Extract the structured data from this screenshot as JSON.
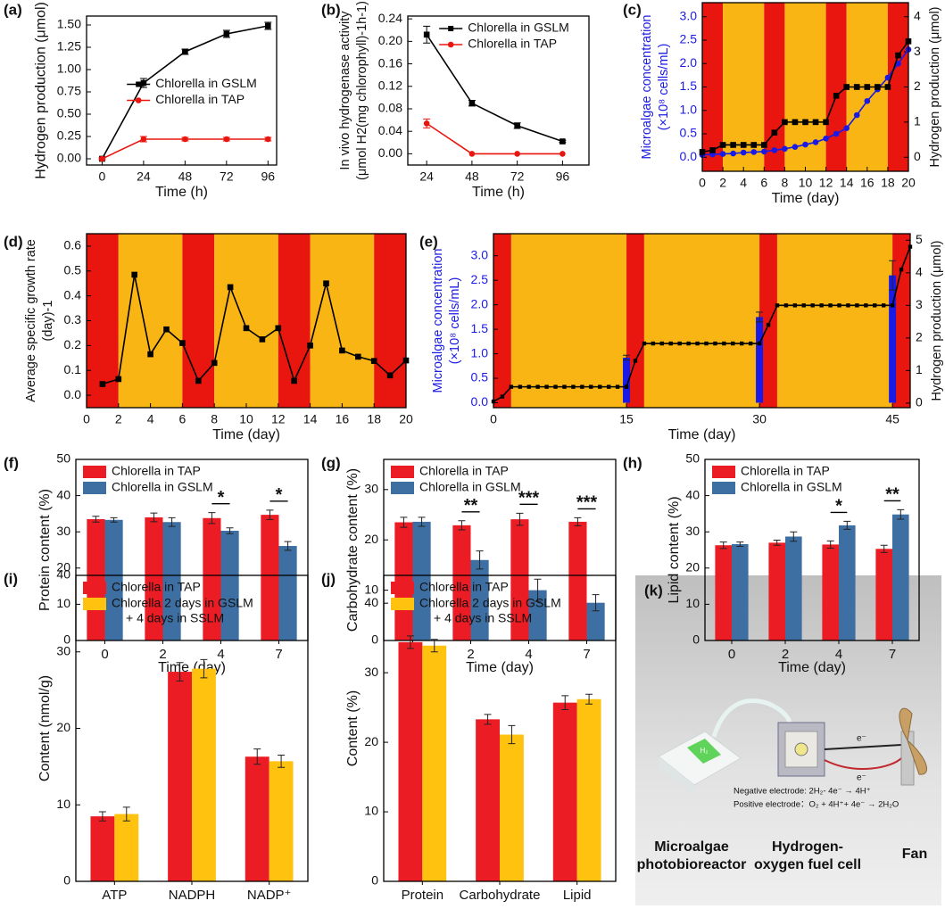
{
  "chart_data": [
    {
      "type": "line",
      "panel": "(a)",
      "xlabel": "Time (h)",
      "ylabel": "Hydrogen production (μmol)",
      "x": [
        0,
        24,
        48,
        72,
        96
      ],
      "xlim": [
        -9,
        101
      ],
      "xticks": [
        0,
        24,
        48,
        72,
        96
      ],
      "ylim": [
        -0.07,
        1.6
      ],
      "yticks": [
        {
          "value": 0,
          "label": "0.00"
        },
        {
          "value": 0.25,
          "label": "0.25"
        },
        {
          "value": 0.5,
          "label": "0.50"
        },
        {
          "value": 0.75,
          "label": "0.75"
        },
        {
          "value": 1,
          "label": "1.00"
        },
        {
          "value": 1.25,
          "label": "1.25"
        },
        {
          "value": 1.5,
          "label": "1.50"
        }
      ],
      "legend": "center right",
      "series": [
        {
          "name": "Chlorella in GSLM",
          "color": "#000000",
          "marker": "square",
          "values": [
            0,
            0.85,
            1.2,
            1.4,
            1.49
          ],
          "errors": [
            0.01,
            0.05,
            0.03,
            0.04,
            0.04
          ]
        },
        {
          "name": "Chlorella in TAP",
          "color": "#e8160f",
          "marker": "circle",
          "values": [
            0,
            0.22,
            0.22,
            0.22,
            0.22
          ],
          "errors": [
            0.01,
            0.03,
            0.02,
            0.02,
            0.02
          ]
        }
      ]
    },
    {
      "type": "line",
      "panel": "(b)",
      "xlabel": "Time (h)",
      "ylabel": [
        "In vivo hydrogenase activity",
        "(μmol H2(mg chlorophyll)-1h-1)"
      ],
      "x": [
        24,
        48,
        72,
        96
      ],
      "xlim": [
        14,
        110
      ],
      "xticks": [
        24,
        48,
        72,
        96
      ],
      "ylim": [
        -0.02,
        0.245
      ],
      "yticks": [
        {
          "value": 0,
          "label": "0.00"
        },
        {
          "value": 0.04,
          "label": "0.04"
        },
        {
          "value": 0.08,
          "label": "0.08"
        },
        {
          "value": 0.12,
          "label": "0.12"
        },
        {
          "value": 0.16,
          "label": "0.16"
        },
        {
          "value": 0.2,
          "label": "0.20"
        },
        {
          "value": 0.24,
          "label": "0.24"
        }
      ],
      "legend": "upper right",
      "series": [
        {
          "name": "Chlorella in GSLM",
          "color": "#000000",
          "marker": "square",
          "values": [
            0.212,
            0.09,
            0.05,
            0.022
          ],
          "errors": [
            0.015,
            0.005,
            0.005,
            0.002
          ]
        },
        {
          "name": "Chlorella in TAP",
          "color": "#e8160f",
          "marker": "circle",
          "values": [
            0.054,
            0,
            0,
            0
          ],
          "errors": [
            0.008,
            0,
            0,
            0
          ]
        }
      ]
    },
    {
      "type": "line",
      "panel": "(c)",
      "xlabel": "Time (day)",
      "ylabel": [
        "Microalgae concentration",
        "(×10⁸ cells/mL)"
      ],
      "ylabel_color": "#1a1ae6",
      "y2label": "Hydrogen production (μmol)",
      "x": [
        0,
        1,
        2,
        3,
        4,
        5,
        6,
        7,
        8,
        9,
        10,
        11,
        12,
        13,
        14,
        15,
        16,
        17,
        18,
        19,
        20
      ],
      "xlim": [
        0,
        20
      ],
      "xticks": [
        0,
        2,
        4,
        6,
        8,
        10,
        12,
        14,
        16,
        18,
        20
      ],
      "ylim": [
        -0.3,
        3.3
      ],
      "yticks": [
        {
          "value": 0,
          "label": "0.0"
        },
        {
          "value": 0.5,
          "label": "0.5"
        },
        {
          "value": 1,
          "label": "1.0"
        },
        {
          "value": 1.5,
          "label": "1.5"
        },
        {
          "value": 2,
          "label": "2.0"
        },
        {
          "value": 2.5,
          "label": "2.5"
        },
        {
          "value": 3,
          "label": "3.0"
        }
      ],
      "y2lim": [
        -0.4,
        4.4
      ],
      "y2ticks": [
        0,
        1,
        2,
        3,
        4
      ],
      "bands": [
        {
          "from": 0,
          "to": 2,
          "color": "#e8160f"
        },
        {
          "from": 2,
          "to": 6,
          "color": "#f8b514"
        },
        {
          "from": 6,
          "to": 8,
          "color": "#e8160f"
        },
        {
          "from": 8,
          "to": 12,
          "color": "#f8b514"
        },
        {
          "from": 12,
          "to": 14,
          "color": "#e8160f"
        },
        {
          "from": 14,
          "to": 18,
          "color": "#f8b514"
        },
        {
          "from": 18,
          "to": 20,
          "color": "#e8160f"
        }
      ],
      "series": [
        {
          "color": "#1a1ae6",
          "marker": "circle",
          "values": [
            0.05,
            0.06,
            0.07,
            0.08,
            0.1,
            0.11,
            0.12,
            0.15,
            0.18,
            0.22,
            0.27,
            0.32,
            0.4,
            0.5,
            0.62,
            0.9,
            1.2,
            1.45,
            1.7,
            2.0,
            2.3
          ]
        },
        {
          "color": "#000000",
          "marker": "square",
          "axis": "y2",
          "values": [
            0.15,
            0.2,
            0.35,
            0.35,
            0.35,
            0.35,
            0.35,
            0.7,
            1.0,
            1.0,
            1.0,
            1.0,
            1.0,
            1.75,
            2.0,
            2.0,
            2.0,
            2.0,
            2.0,
            2.9,
            3.3
          ]
        }
      ]
    },
    {
      "type": "line",
      "panel": "(d)",
      "xlabel": "Time (day)",
      "ylabel": [
        "Average specific growth rate",
        "(day)-1"
      ],
      "x": [
        1,
        2,
        3,
        4,
        5,
        6,
        7,
        8,
        9,
        10,
        11,
        12,
        13,
        14,
        15,
        16,
        17,
        18,
        19,
        20
      ],
      "xlim": [
        0,
        20
      ],
      "xticks": [
        0,
        2,
        4,
        6,
        8,
        10,
        12,
        14,
        16,
        18,
        20
      ],
      "ylim": [
        -0.05,
        0.65
      ],
      "yticks": [
        {
          "value": 0,
          "label": "0.0"
        },
        {
          "value": 0.1,
          "label": "0.1"
        },
        {
          "value": 0.2,
          "label": "0.2"
        },
        {
          "value": 0.3,
          "label": "0.3"
        },
        {
          "value": 0.4,
          "label": "0.4"
        },
        {
          "value": 0.5,
          "label": "0.5"
        },
        {
          "value": 0.6,
          "label": "0.6"
        }
      ],
      "bands": [
        {
          "from": 0,
          "to": 2,
          "color": "#e8160f"
        },
        {
          "from": 2,
          "to": 6,
          "color": "#f8b514"
        },
        {
          "from": 6,
          "to": 8,
          "color": "#e8160f"
        },
        {
          "from": 8,
          "to": 12,
          "color": "#f8b514"
        },
        {
          "from": 12,
          "to": 14,
          "color": "#e8160f"
        },
        {
          "from": 14,
          "to": 18,
          "color": "#f8b514"
        },
        {
          "from": 18,
          "to": 20,
          "color": "#e8160f"
        }
      ],
      "series": [
        {
          "color": "#000000",
          "marker": "square",
          "values": [
            0.045,
            0.065,
            0.485,
            0.165,
            0.265,
            0.21,
            0.058,
            0.13,
            0.435,
            0.27,
            0.225,
            0.27,
            0.058,
            0.2,
            0.45,
            0.18,
            0.155,
            0.138,
            0.08,
            0.14
          ]
        }
      ]
    },
    {
      "type": "line",
      "panel": "(e)",
      "xlabel": "Time (day)",
      "ylabel": [
        "Microalgae concentration",
        "(×10⁸ cells/mL)"
      ],
      "ylabel_color": "#1a1ae6",
      "y2label": "Hydrogen production (μmol)",
      "x": [
        0,
        1,
        2,
        3,
        4,
        5,
        6,
        7,
        8,
        9,
        10,
        11,
        12,
        13,
        14,
        15,
        16,
        17,
        18,
        19,
        20,
        21,
        22,
        23,
        24,
        25,
        26,
        27,
        28,
        29,
        30,
        31,
        32,
        33,
        34,
        35,
        36,
        37,
        38,
        39,
        40,
        41,
        42,
        43,
        44,
        45,
        46,
        47
      ],
      "xlim": [
        0,
        47
      ],
      "xticks": [
        0,
        15,
        30,
        45
      ],
      "ylim": [
        -0.1,
        3.45
      ],
      "yticks": [
        {
          "value": 0,
          "label": "0.0"
        },
        {
          "value": 0.5,
          "label": "0.5"
        },
        {
          "value": 1,
          "label": "1.0"
        },
        {
          "value": 1.5,
          "label": "1.5"
        },
        {
          "value": 2,
          "label": "2.0"
        },
        {
          "value": 2.5,
          "label": "2.5"
        },
        {
          "value": 3,
          "label": "3.0"
        }
      ],
      "y2lim": [
        -0.14,
        5.2
      ],
      "y2ticks": [
        0,
        1,
        2,
        3,
        4,
        5
      ],
      "bands": [
        {
          "from": 0,
          "to": 2,
          "color": "#e8160f"
        },
        {
          "from": 2,
          "to": 15,
          "color": "#f8b514"
        },
        {
          "from": 15,
          "to": 17,
          "color": "#e8160f"
        },
        {
          "from": 17,
          "to": 30,
          "color": "#f8b514"
        },
        {
          "from": 30,
          "to": 32,
          "color": "#e8160f"
        },
        {
          "from": 32,
          "to": 45,
          "color": "#f8b514"
        },
        {
          "from": 45,
          "to": 47,
          "color": "#e8160f"
        }
      ],
      "series": [
        {
          "type": "bar",
          "color": "#1a1ae6",
          "x": [
            15,
            30,
            45
          ],
          "values": [
            0.92,
            1.75,
            2.6
          ],
          "errors": [
            0.05,
            0.1,
            0.3
          ]
        },
        {
          "color": "#000000",
          "marker": "square",
          "axis": "y2",
          "values": [
            0.05,
            0.2,
            0.5,
            0.5,
            0.5,
            0.5,
            0.5,
            0.5,
            0.5,
            0.5,
            0.5,
            0.5,
            0.5,
            0.5,
            0.5,
            0.5,
            1.3,
            1.83,
            1.83,
            1.83,
            1.83,
            1.83,
            1.83,
            1.83,
            1.83,
            1.83,
            1.83,
            1.83,
            1.83,
            1.83,
            1.83,
            2.4,
            3.0,
            3.0,
            3.0,
            3.0,
            3.0,
            3.0,
            3.0,
            3.0,
            3.0,
            3.0,
            3.0,
            3.0,
            3.0,
            3.0,
            4.1,
            4.8
          ]
        }
      ]
    },
    {
      "type": "bar",
      "panel": "(f)",
      "xlabel": "Time (day)",
      "ylabel": "Protein content (%)",
      "categories": [
        "0",
        "2",
        "4",
        "7"
      ],
      "ylim": [
        0,
        50
      ],
      "yticks": [
        0,
        10,
        20,
        30,
        40,
        50
      ],
      "legend": "upper left",
      "series": [
        {
          "name": "Chlorella in TAP",
          "color": "#ec1c24",
          "values": [
            33.5,
            34,
            33.8,
            34.7
          ],
          "errors": [
            0.8,
            1.2,
            1.5,
            1.3
          ]
        },
        {
          "name": "Chlorella in GSLM",
          "color": "#3e6fa3",
          "values": [
            33.3,
            32.7,
            30.3,
            26.1
          ],
          "errors": [
            0.6,
            1.2,
            0.8,
            1.2
          ]
        }
      ],
      "annotations": [
        {
          "text": "*",
          "category": "4"
        },
        {
          "text": "*",
          "category": "7"
        }
      ]
    },
    {
      "type": "bar",
      "panel": "(g)",
      "xlabel": "Time (day)",
      "ylabel": "Carbohydrate content (%)",
      "categories": [
        "0",
        "2",
        "4",
        "7"
      ],
      "ylim": [
        0,
        36
      ],
      "yticks": [
        0,
        10,
        20,
        30
      ],
      "legend": "upper left",
      "series": [
        {
          "name": "Chlorella in TAP",
          "color": "#ec1c24",
          "values": [
            23.5,
            22.9,
            24.1,
            23.6
          ],
          "errors": [
            1,
            0.9,
            1.2,
            0.8
          ]
        },
        {
          "name": "Chlorella in GSLM",
          "color": "#3e6fa3",
          "values": [
            23.6,
            16,
            10,
            7.5
          ],
          "errors": [
            0.9,
            1.8,
            2.2,
            1.6
          ]
        }
      ],
      "annotations": [
        {
          "text": "**",
          "category": "2"
        },
        {
          "text": "***",
          "category": "4"
        },
        {
          "text": "***",
          "category": "7"
        }
      ]
    },
    {
      "type": "bar",
      "panel": "(h)",
      "xlabel": "Time (day)",
      "ylabel": "Lipid content (%)",
      "categories": [
        "0",
        "2",
        "4",
        "7"
      ],
      "ylim": [
        0,
        50
      ],
      "yticks": [
        0,
        10,
        20,
        30,
        40,
        50
      ],
      "legend": "upper left",
      "series": [
        {
          "name": "Chlorella in TAP",
          "color": "#ec1c24",
          "values": [
            26.3,
            27,
            26.5,
            25.3
          ],
          "errors": [
            0.9,
            0.7,
            1.0,
            1.0
          ]
        },
        {
          "name": "Chlorella in GSLM",
          "color": "#3e6fa3",
          "values": [
            26.6,
            28.7,
            31.8,
            34.8
          ],
          "errors": [
            0.6,
            1.3,
            1.1,
            1.3
          ]
        }
      ],
      "annotations": [
        {
          "text": "*",
          "category": "4"
        },
        {
          "text": "**",
          "category": "7"
        }
      ]
    },
    {
      "type": "bar",
      "panel": "(i)",
      "ylabel": "Content (nmol/g)",
      "categories": [
        "ATP",
        "NADPH",
        "NADP⁺"
      ],
      "ylim": [
        0,
        40
      ],
      "yticks": [
        0,
        10,
        20,
        30,
        40
      ],
      "legend": "upper left",
      "series": [
        {
          "name": "Chlorella in TAP",
          "color": "#ec1c24",
          "values": [
            8.5,
            27.4,
            16.3
          ],
          "errors": [
            0.6,
            1.2,
            1.0
          ]
        },
        {
          "name": "Chlorella 2 days in GSLM",
          "name_continued": "+ 4 days in SSLM",
          "color": "#ffc20e",
          "values": [
            8.8,
            27.8,
            15.7
          ],
          "errors": [
            0.9,
            1.2,
            0.8
          ]
        }
      ]
    },
    {
      "type": "bar",
      "panel": "(j)",
      "ylabel": "Content (%)",
      "categories": [
        "Protein",
        "Carbohydrate",
        "Lipid"
      ],
      "ylim": [
        0,
        44
      ],
      "yticks": [
        0,
        10,
        20,
        30,
        40
      ],
      "legend": "upper left",
      "series": [
        {
          "name": "Chlorella in TAP",
          "color": "#ec1c24",
          "values": [
            34.4,
            23.3,
            25.7
          ],
          "errors": [
            0.9,
            0.7,
            1.0
          ]
        },
        {
          "name": "Chlorella 2 days in GSLM",
          "name_continued": "+ 4 days in SSLM",
          "color": "#ffc20e",
          "values": [
            33.9,
            21.1,
            26.2
          ],
          "errors": [
            0.9,
            1.3,
            0.7
          ]
        }
      ]
    }
  ],
  "diagram": {
    "panel": "(k)",
    "reactor": [
      "Microalgae",
      "photobioreactor"
    ],
    "fuel_cell": [
      "Hydrogen-",
      "oxygen fuel cell"
    ],
    "fan": "Fan",
    "h2": "H₂",
    "negative": "Negative electrode: 2H₂- 4e⁻ → 4H⁺",
    "positive": "Positive electrode：O₂ + 4H⁺+ 4e⁻ → 2H₂O",
    "electron_top": "e⁻",
    "electron_bottom": "e⁻"
  }
}
